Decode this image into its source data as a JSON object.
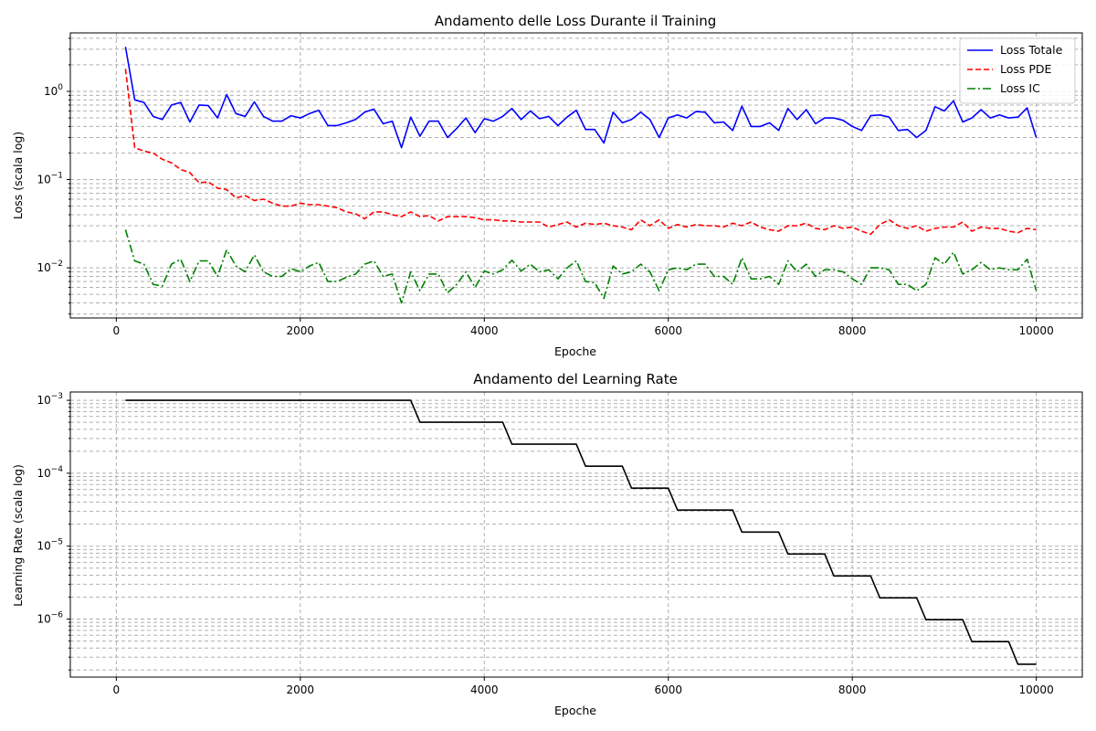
{
  "chart_data": [
    {
      "type": "line",
      "title": "Andamento delle Loss Durante il Training",
      "xlabel": "Epoche",
      "ylabel": "Loss (scala log)",
      "xscale": "linear",
      "yscale": "log",
      "xlim": [
        -500,
        10500
      ],
      "ylim": [
        0.0027,
        4.6
      ],
      "xticks": [
        0,
        2000,
        4000,
        6000,
        8000,
        10000
      ],
      "yticks": [
        0.01,
        0.1,
        1
      ],
      "ytick_labels": [
        "10^-2",
        "10^-1",
        "10^0"
      ],
      "grid": true,
      "legend_position": "top-right",
      "x": [
        100,
        200,
        300,
        400,
        500,
        600,
        700,
        800,
        900,
        1000,
        1100,
        1200,
        1300,
        1400,
        1500,
        1600,
        1700,
        1800,
        1900,
        2000,
        2100,
        2200,
        2300,
        2400,
        2500,
        2600,
        2700,
        2800,
        2900,
        3000,
        3100,
        3200,
        3300,
        3400,
        3500,
        3600,
        3700,
        3800,
        3900,
        4000,
        4100,
        4200,
        4300,
        4400,
        4500,
        4600,
        4700,
        4800,
        4900,
        5000,
        5100,
        5200,
        5300,
        5400,
        5500,
        5600,
        5700,
        5800,
        5900,
        6000,
        6100,
        6200,
        6300,
        6400,
        6500,
        6600,
        6700,
        6800,
        6900,
        7000,
        7100,
        7200,
        7300,
        7400,
        7500,
        7600,
        7700,
        7800,
        7900,
        8000,
        8100,
        8200,
        8300,
        8400,
        8500,
        8600,
        8700,
        8800,
        8900,
        9000,
        9100,
        9200,
        9300,
        9400,
        9500,
        9600,
        9700,
        9800,
        9900,
        10000
      ],
      "series": [
        {
          "name": "Loss Totale",
          "color": "#0000ff",
          "dash": "solid",
          "values": [
            3.2,
            0.8,
            0.75,
            0.52,
            0.48,
            0.7,
            0.75,
            0.45,
            0.7,
            0.69,
            0.5,
            0.92,
            0.56,
            0.52,
            0.76,
            0.52,
            0.46,
            0.46,
            0.53,
            0.5,
            0.56,
            0.61,
            0.41,
            0.41,
            0.44,
            0.48,
            0.58,
            0.63,
            0.43,
            0.46,
            0.23,
            0.51,
            0.31,
            0.46,
            0.46,
            0.3,
            0.38,
            0.5,
            0.34,
            0.49,
            0.46,
            0.52,
            0.64,
            0.48,
            0.6,
            0.49,
            0.52,
            0.41,
            0.51,
            0.61,
            0.37,
            0.37,
            0.26,
            0.58,
            0.44,
            0.48,
            0.58,
            0.48,
            0.3,
            0.5,
            0.54,
            0.5,
            0.59,
            0.58,
            0.44,
            0.45,
            0.36,
            0.68,
            0.4,
            0.4,
            0.44,
            0.36,
            0.64,
            0.48,
            0.62,
            0.43,
            0.5,
            0.5,
            0.47,
            0.4,
            0.36,
            0.53,
            0.54,
            0.51,
            0.36,
            0.37,
            0.3,
            0.36,
            0.67,
            0.6,
            0.78,
            0.45,
            0.5,
            0.62,
            0.5,
            0.54,
            0.5,
            0.51,
            0.65,
            0.3
          ]
        },
        {
          "name": "Loss PDE",
          "color": "#ff0000",
          "dash": "dashed",
          "values": [
            1.8,
            0.23,
            0.21,
            0.2,
            0.17,
            0.155,
            0.13,
            0.12,
            0.092,
            0.094,
            0.08,
            0.077,
            0.062,
            0.066,
            0.058,
            0.06,
            0.054,
            0.05,
            0.05,
            0.054,
            0.052,
            0.052,
            0.05,
            0.048,
            0.043,
            0.041,
            0.036,
            0.043,
            0.043,
            0.04,
            0.038,
            0.043,
            0.038,
            0.039,
            0.034,
            0.038,
            0.038,
            0.038,
            0.037,
            0.035,
            0.035,
            0.034,
            0.034,
            0.033,
            0.033,
            0.033,
            0.029,
            0.031,
            0.033,
            0.029,
            0.032,
            0.031,
            0.032,
            0.03,
            0.029,
            0.027,
            0.035,
            0.03,
            0.035,
            0.028,
            0.031,
            0.029,
            0.031,
            0.03,
            0.03,
            0.029,
            0.032,
            0.03,
            0.033,
            0.029,
            0.027,
            0.026,
            0.03,
            0.03,
            0.032,
            0.028,
            0.027,
            0.03,
            0.028,
            0.029,
            0.026,
            0.024,
            0.031,
            0.035,
            0.03,
            0.028,
            0.03,
            0.026,
            0.028,
            0.029,
            0.029,
            0.033,
            0.026,
            0.029,
            0.028,
            0.028,
            0.026,
            0.025,
            0.028,
            0.027
          ]
        },
        {
          "name": "Loss IC",
          "color": "#008000",
          "dash": "dashdot",
          "values": [
            0.027,
            0.012,
            0.011,
            0.0065,
            0.0062,
            0.011,
            0.0125,
            0.007,
            0.012,
            0.012,
            0.008,
            0.016,
            0.0105,
            0.009,
            0.014,
            0.009,
            0.008,
            0.008,
            0.0098,
            0.009,
            0.0105,
            0.0115,
            0.007,
            0.007,
            0.0078,
            0.0085,
            0.011,
            0.012,
            0.008,
            0.0085,
            0.004,
            0.009,
            0.0055,
            0.0085,
            0.0085,
            0.0052,
            0.0065,
            0.009,
            0.006,
            0.0092,
            0.0085,
            0.0095,
            0.0122,
            0.0092,
            0.011,
            0.009,
            0.0095,
            0.0075,
            0.01,
            0.012,
            0.007,
            0.0068,
            0.0045,
            0.0105,
            0.0085,
            0.009,
            0.011,
            0.009,
            0.0055,
            0.0095,
            0.01,
            0.0095,
            0.011,
            0.011,
            0.008,
            0.008,
            0.0065,
            0.013,
            0.0075,
            0.0075,
            0.008,
            0.0065,
            0.012,
            0.009,
            0.011,
            0.008,
            0.0095,
            0.0095,
            0.009,
            0.0075,
            0.0065,
            0.01,
            0.01,
            0.0095,
            0.0065,
            0.0065,
            0.0055,
            0.0065,
            0.013,
            0.011,
            0.015,
            0.0085,
            0.0095,
            0.0115,
            0.0095,
            0.01,
            0.0095,
            0.0095,
            0.0125,
            0.0055
          ]
        }
      ]
    },
    {
      "type": "line",
      "title": "Andamento del Learning Rate",
      "xlabel": "Epoche",
      "ylabel": "Learning Rate (scala log)",
      "xscale": "linear",
      "yscale": "log",
      "xlim": [
        -500,
        10500
      ],
      "ylim": [
        1.6e-07,
        0.0013
      ],
      "xticks": [
        0,
        2000,
        4000,
        6000,
        8000,
        10000
      ],
      "yticks": [
        1e-06,
        1e-05,
        0.0001,
        0.001
      ],
      "ytick_labels": [
        "10^-6",
        "10^-5",
        "10^-4",
        "10^-3"
      ],
      "grid": true,
      "series": [
        {
          "color": "#000000",
          "dash": "solid",
          "x": [
            100,
            3200,
            3300,
            4200,
            4300,
            5000,
            5100,
            5500,
            5600,
            6000,
            6100,
            6700,
            6800,
            7200,
            7300,
            7700,
            7800,
            8200,
            8300,
            8700,
            8800,
            9200,
            9300,
            9700,
            9800,
            10000
          ],
          "values": [
            0.001,
            0.001,
            0.0005,
            0.0005,
            0.00025,
            0.00025,
            0.000125,
            0.000125,
            6.25e-05,
            6.25e-05,
            3.125e-05,
            3.125e-05,
            1.56e-05,
            1.56e-05,
            7.8e-06,
            7.8e-06,
            3.9e-06,
            3.9e-06,
            1.95e-06,
            1.95e-06,
            9.8e-07,
            9.8e-07,
            4.9e-07,
            4.9e-07,
            2.4e-07,
            2.4e-07
          ]
        }
      ]
    }
  ]
}
